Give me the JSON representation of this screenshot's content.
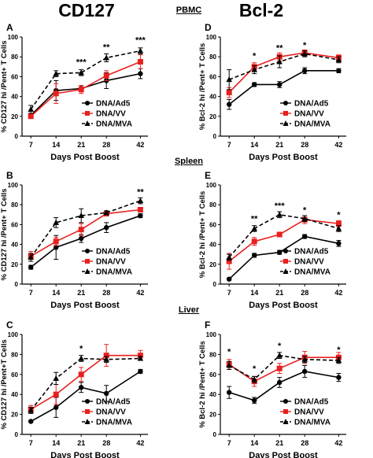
{
  "figure": {
    "col_titles": [
      "CD127",
      "Bcl-2"
    ],
    "section_titles": [
      "PBMC",
      "Spleen",
      "Liver"
    ]
  },
  "chart_data": [
    {
      "panel": "A",
      "type": "line",
      "title": "CD127",
      "xlabel": "Days Post Boost",
      "ylabel": "% CD127 hi /Pent+ T Cells",
      "x": [
        7,
        14,
        21,
        28,
        42
      ],
      "xticks": [
        "7",
        "14",
        "21",
        "28",
        "42"
      ],
      "ylim": [
        0,
        100
      ],
      "yticks": [
        0,
        20,
        40,
        60,
        80,
        100
      ],
      "series": [
        {
          "name": "DNA/Ad5",
          "color": "#000000",
          "marker": "circle",
          "dash": false,
          "values": [
            21,
            46,
            48,
            56,
            63
          ],
          "err": [
            2,
            10,
            3,
            8,
            5
          ]
        },
        {
          "name": "DNA/VV",
          "color": "#e8201e",
          "marker": "square",
          "dash": false,
          "values": [
            20,
            43,
            47,
            61,
            75
          ],
          "err": [
            2,
            10,
            4,
            5,
            7
          ]
        },
        {
          "name": "DNA/MVA",
          "color": "#000000",
          "marker": "triangle",
          "dash": true,
          "values": [
            27,
            63,
            64,
            79,
            86
          ],
          "err": [
            4,
            3,
            3,
            4,
            3
          ]
        }
      ],
      "annotations": [
        {
          "x": 21,
          "y": 72,
          "text": "***"
        },
        {
          "x": 28,
          "y": 87,
          "text": "**"
        },
        {
          "x": 42,
          "y": 94,
          "text": "***"
        }
      ]
    },
    {
      "panel": "D",
      "type": "line",
      "title": "Bcl-2",
      "xlabel": "Days Post Boost",
      "ylabel": "% Bcl-2 hi /Pent+ T Cells",
      "x": [
        7,
        14,
        21,
        28,
        42
      ],
      "xticks": [
        "7",
        "14",
        "21",
        "28",
        "42"
      ],
      "ylim": [
        0,
        100
      ],
      "yticks": [
        0,
        20,
        40,
        60,
        80,
        100
      ],
      "series": [
        {
          "name": "DNA/Ad5",
          "color": "#000000",
          "marker": "circle",
          "dash": false,
          "values": [
            32,
            52,
            52,
            66,
            66
          ],
          "err": [
            5,
            2,
            3,
            3,
            2
          ]
        },
        {
          "name": "DNA/VV",
          "color": "#e8201e",
          "marker": "square",
          "dash": false,
          "values": [
            44,
            70,
            80,
            84,
            79
          ],
          "err": [
            5,
            4,
            4,
            3,
            3
          ]
        },
        {
          "name": "DNA/MVA",
          "color": "#000000",
          "marker": "triangle",
          "dash": true,
          "values": [
            57,
            67,
            75,
            83,
            77
          ],
          "err": [
            10,
            4,
            6,
            3,
            3
          ]
        }
      ],
      "annotations": [
        {
          "x": 14,
          "y": 78,
          "text": "*"
        },
        {
          "x": 21,
          "y": 86,
          "text": "**"
        },
        {
          "x": 28,
          "y": 89,
          "text": "*"
        }
      ]
    },
    {
      "panel": "B",
      "type": "line",
      "title": "",
      "xlabel": "Days Post Boost",
      "ylabel": "% CD127 hi /Pent+ T Cells",
      "x": [
        7,
        14,
        21,
        28,
        42
      ],
      "xticks": [
        "7",
        "14",
        "21",
        "28",
        "42"
      ],
      "ylim": [
        0,
        100
      ],
      "yticks": [
        0,
        20,
        40,
        60,
        80,
        100
      ],
      "series": [
        {
          "name": "DNA/Ad5",
          "color": "#000000",
          "marker": "circle",
          "dash": false,
          "values": [
            17,
            37,
            46,
            57,
            69
          ],
          "err": [
            2,
            12,
            4,
            5,
            2
          ]
        },
        {
          "name": "DNA/VV",
          "color": "#e8201e",
          "marker": "square",
          "dash": false,
          "values": [
            28,
            43,
            55,
            71,
            75
          ],
          "err": [
            5,
            4,
            6,
            2,
            2
          ]
        },
        {
          "name": "DNA/MVA",
          "color": "#000000",
          "marker": "triangle",
          "dash": true,
          "values": [
            27,
            62,
            69,
            72,
            84
          ],
          "err": [
            4,
            5,
            7,
            2,
            3
          ]
        }
      ],
      "annotations": [
        {
          "x": 42,
          "y": 90,
          "text": "**"
        }
      ]
    },
    {
      "panel": "E",
      "type": "line",
      "title": "",
      "xlabel": "Days Post Boost",
      "ylabel": "% Bcl-2 hi /Pent+ T Cells",
      "x": [
        7,
        14,
        21,
        28,
        42
      ],
      "xticks": [
        "7",
        "14",
        "21",
        "28",
        "42"
      ],
      "ylim": [
        0,
        100
      ],
      "yticks": [
        0,
        20,
        40,
        60,
        80,
        100
      ],
      "series": [
        {
          "name": "DNA/Ad5",
          "color": "#000000",
          "marker": "circle",
          "dash": false,
          "values": [
            5,
            29,
            32,
            48,
            41
          ],
          "err": [
            1,
            2,
            2,
            2,
            3
          ]
        },
        {
          "name": "DNA/VV",
          "color": "#e8201e",
          "marker": "square",
          "dash": false,
          "values": [
            23,
            43,
            50,
            65,
            61
          ],
          "err": [
            8,
            4,
            2,
            4,
            3
          ]
        },
        {
          "name": "DNA/MVA",
          "color": "#000000",
          "marker": "triangle",
          "dash": true,
          "values": [
            27,
            56,
            70,
            66,
            56
          ],
          "err": [
            3,
            3,
            3,
            3,
            3
          ]
        }
      ],
      "annotations": [
        {
          "x": 14,
          "y": 63,
          "text": "**"
        },
        {
          "x": 21,
          "y": 76,
          "text": "***"
        },
        {
          "x": 28,
          "y": 72,
          "text": "*"
        },
        {
          "x": 42,
          "y": 67,
          "text": "*"
        }
      ]
    },
    {
      "panel": "C",
      "type": "line",
      "title": "",
      "xlabel": "Days Post Boost",
      "ylabel": "% CD127 hi /Pent+T Cells",
      "x": [
        7,
        14,
        21,
        28,
        42
      ],
      "xticks": [
        "7",
        "14",
        "21",
        "28",
        "42"
      ],
      "ylim": [
        0,
        100
      ],
      "yticks": [
        0,
        20,
        40,
        60,
        80,
        100
      ],
      "series": [
        {
          "name": "DNA/Ad5",
          "color": "#000000",
          "marker": "circle",
          "dash": false,
          "values": [
            13,
            27,
            47,
            41,
            63
          ],
          "err": [
            1,
            10,
            5,
            8,
            2
          ]
        },
        {
          "name": "DNA/VV",
          "color": "#e8201e",
          "marker": "square",
          "dash": false,
          "values": [
            25,
            40,
            60,
            79,
            79
          ],
          "err": [
            4,
            10,
            7,
            11,
            5
          ]
        },
        {
          "name": "DNA/MVA",
          "color": "#000000",
          "marker": "triangle",
          "dash": true,
          "values": [
            24,
            56,
            76,
            75,
            76
          ],
          "err": [
            3,
            6,
            3,
            3,
            2
          ]
        }
      ],
      "annotations": [
        {
          "x": 21,
          "y": 83,
          "text": "*"
        }
      ]
    },
    {
      "panel": "F",
      "type": "line",
      "title": "",
      "xlabel": "Days Post Boost",
      "ylabel": "% Bcl-2 hi /Pent+ T Cells",
      "x": [
        7,
        14,
        21,
        28,
        42
      ],
      "xticks": [
        "7",
        "14",
        "21",
        "28",
        "42"
      ],
      "ylim": [
        0,
        100
      ],
      "yticks": [
        0,
        20,
        40,
        60,
        80,
        100
      ],
      "series": [
        {
          "name": "DNA/Ad5",
          "color": "#000000",
          "marker": "circle",
          "dash": false,
          "values": [
            42,
            34,
            52,
            63,
            57
          ],
          "err": [
            6,
            3,
            5,
            6,
            4
          ]
        },
        {
          "name": "DNA/VV",
          "color": "#e8201e",
          "marker": "square",
          "dash": false,
          "values": [
            70,
            53,
            66,
            77,
            77
          ],
          "err": [
            5,
            5,
            5,
            6,
            5
          ]
        },
        {
          "name": "DNA/MVA",
          "color": "#000000",
          "marker": "triangle",
          "dash": true,
          "values": [
            69,
            55,
            79,
            75,
            74
          ],
          "err": [
            4,
            3,
            3,
            3,
            3
          ]
        }
      ],
      "annotations": [
        {
          "x": 7,
          "y": 80,
          "text": "*"
        },
        {
          "x": 14,
          "y": 63,
          "text": "*"
        },
        {
          "x": 21,
          "y": 86,
          "text": "*"
        },
        {
          "x": 42,
          "y": 82,
          "text": "*"
        }
      ]
    }
  ]
}
